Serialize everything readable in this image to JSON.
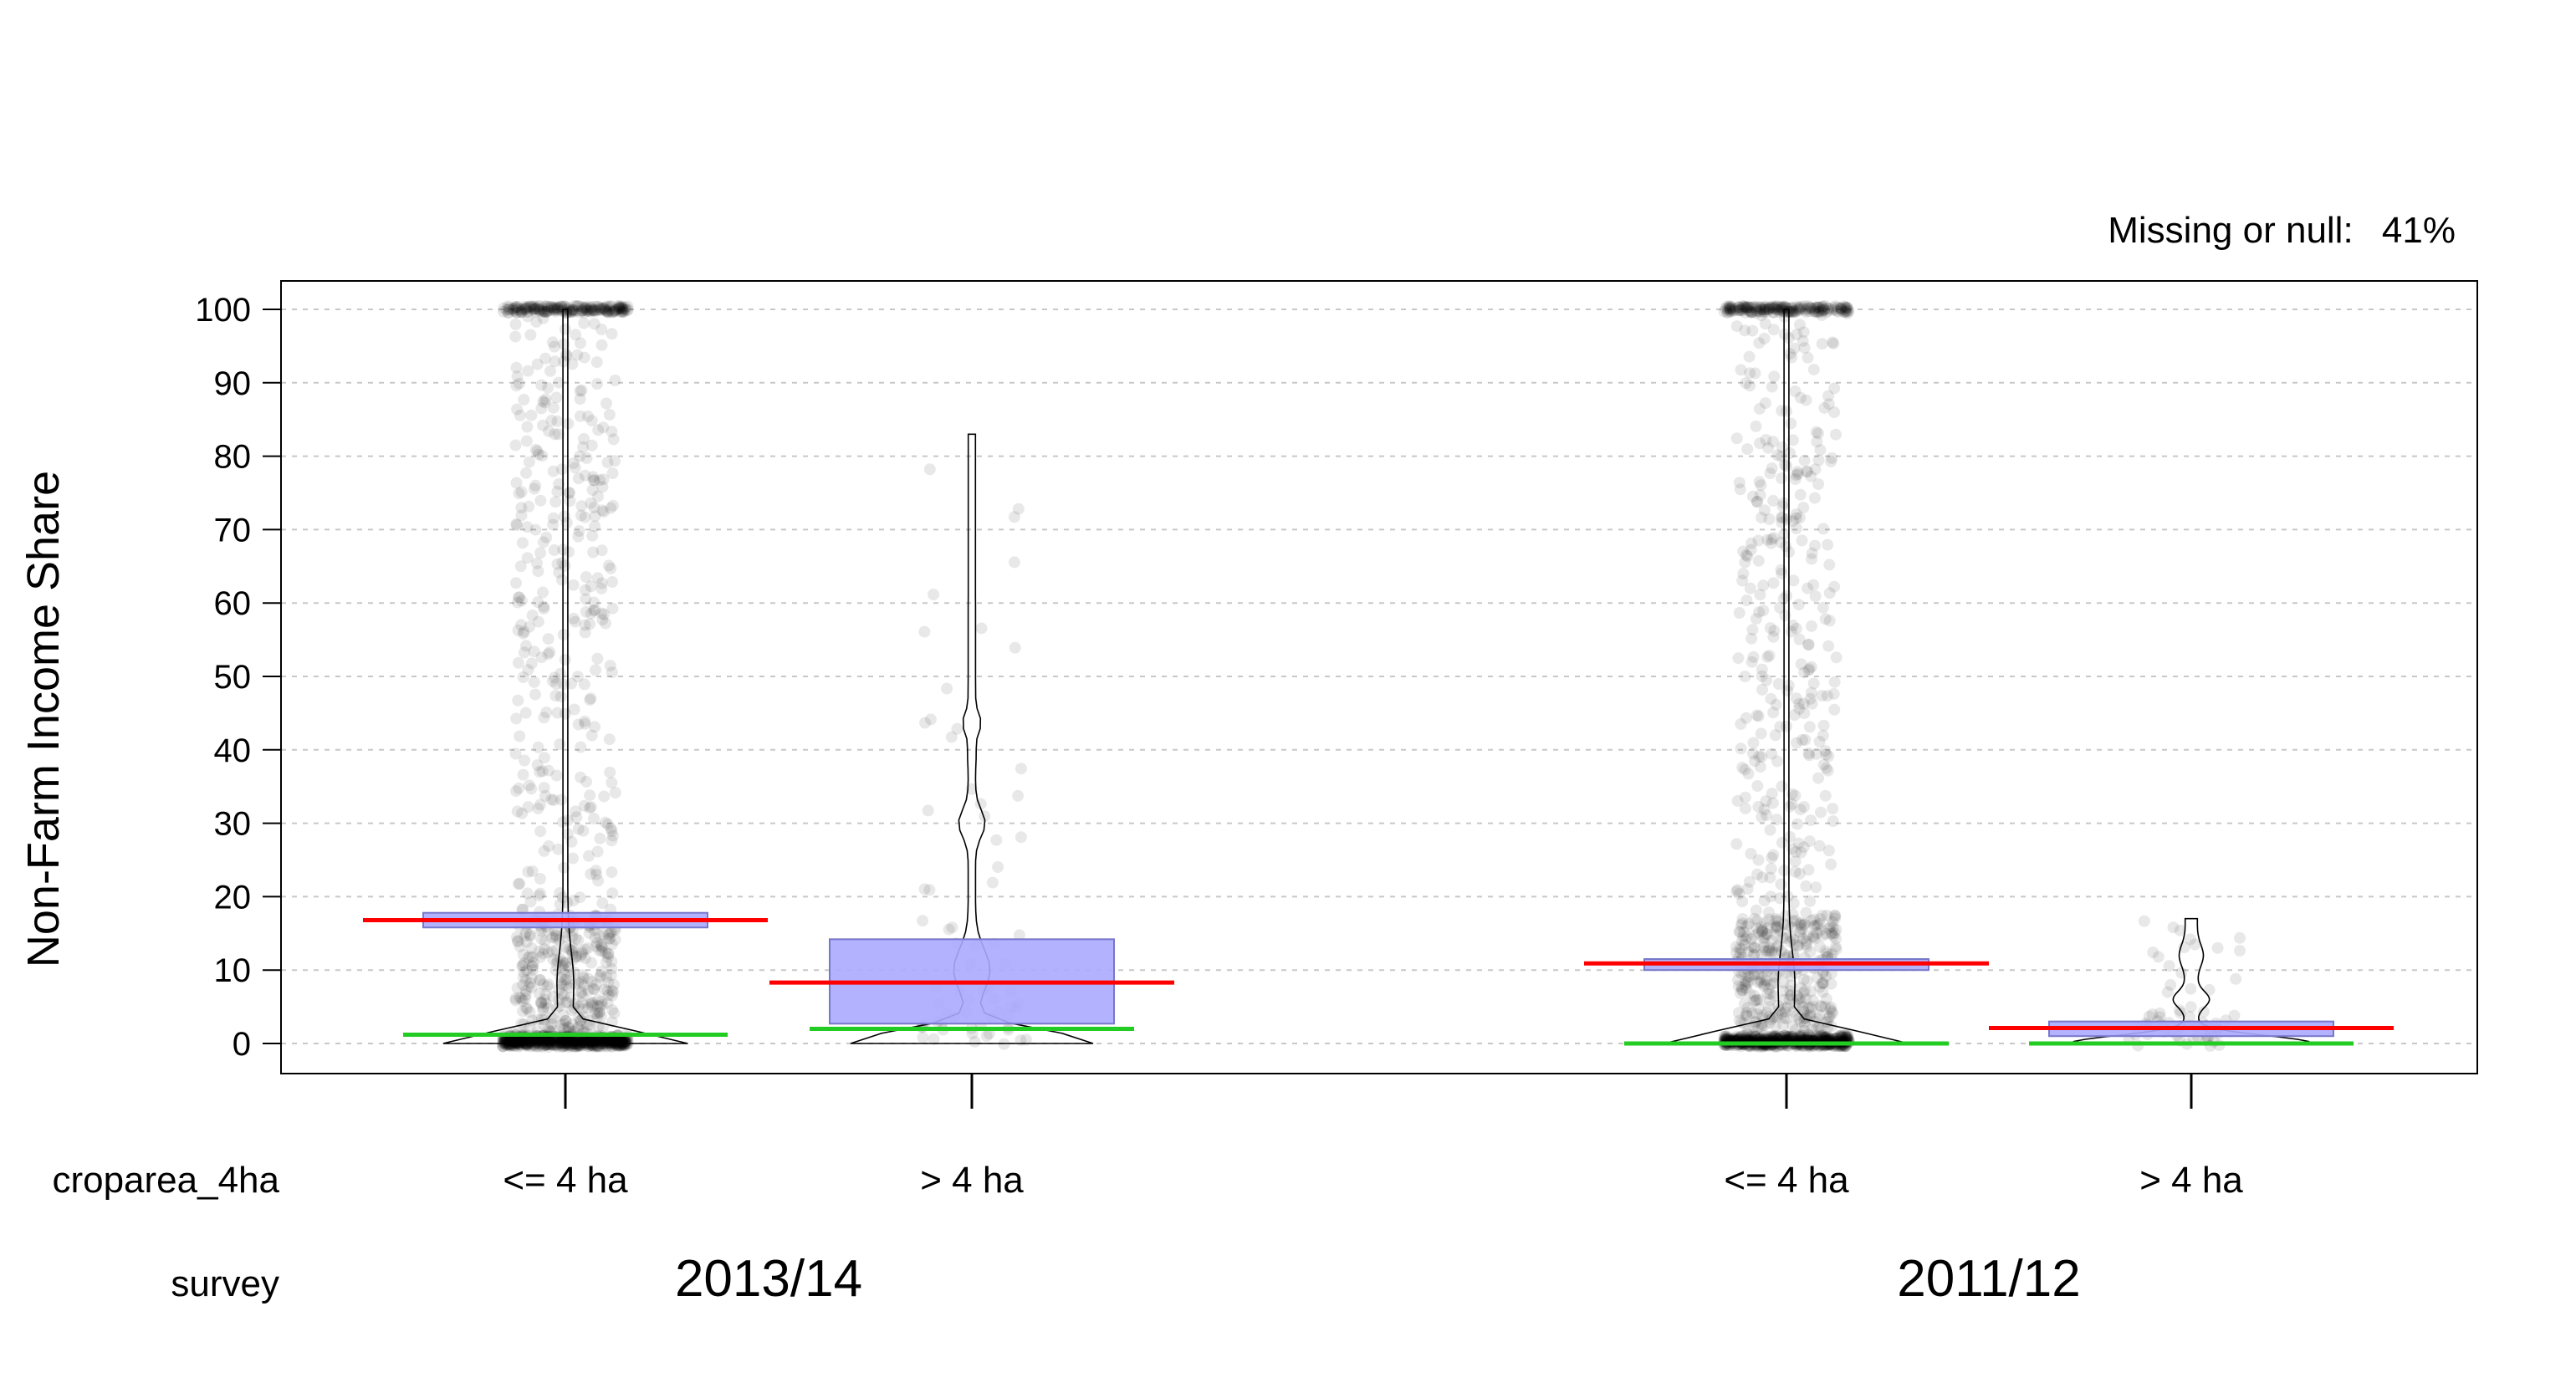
{
  "chart_data": {
    "type": "violin-box-strip",
    "ylabel": "Non-Farm Income Share",
    "ylim": [
      -4,
      104
    ],
    "yticks": [
      0,
      10,
      20,
      30,
      40,
      50,
      60,
      70,
      80,
      90,
      100
    ],
    "grid": "horizontal dashed",
    "annotation": {
      "label": "Missing or null:",
      "value": "41%"
    },
    "row_labels": {
      "category_var": "croparea_4ha",
      "group_var": "survey"
    },
    "groups": [
      {
        "name": "2013/14",
        "categories": [
          {
            "label": "<= 4 ha",
            "box": [
              15.8,
              17.8
            ],
            "mean": 16.8,
            "median": 1.2,
            "max": 100,
            "n_points": 1500
          },
          {
            "label": "> 4 ha",
            "box": [
              2.7,
              14.2
            ],
            "mean": 8.3,
            "median": 2.0,
            "max": 83,
            "n_points": 70
          }
        ]
      },
      {
        "name": "2011/12",
        "categories": [
          {
            "label": "<= 4 ha",
            "box": [
              10.0,
              11.5
            ],
            "mean": 10.9,
            "median": 0.0,
            "max": 100,
            "n_points": 1500
          },
          {
            "label": "> 4 ha",
            "box": [
              1.0,
              3.0
            ],
            "mean": 2.1,
            "median": 0.0,
            "max": 17,
            "n_points": 70
          }
        ]
      }
    ],
    "colors": {
      "box_fill": "#aaaaff",
      "box_stroke": "#7777cc",
      "mean_line": "#ff0000",
      "median_line": "#22cc22",
      "points": "#000000",
      "grid": "#c8c8c8"
    }
  }
}
